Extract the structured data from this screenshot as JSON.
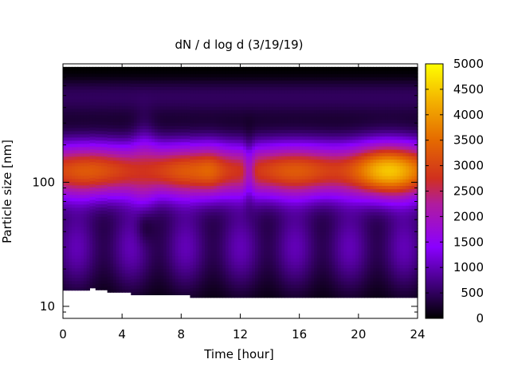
{
  "chart_data": {
    "type": "heatmap",
    "title": "dN / d log d (3/19/19)",
    "xlabel": "Time [hour]",
    "ylabel": "Particle size [nm]",
    "x_range": [
      0,
      24
    ],
    "x_ticks": [
      0,
      4,
      8,
      12,
      16,
      20,
      24
    ],
    "y_scale": "log",
    "y_range_nm": [
      8,
      900
    ],
    "y_ticks": [
      10,
      100
    ],
    "colorbar": {
      "range": [
        0,
        5000
      ],
      "ticks": [
        0,
        500,
        1000,
        1500,
        2000,
        2500,
        3000,
        3500,
        4000,
        4500,
        5000
      ],
      "colormap": [
        "#000000",
        "#4b0082",
        "#8a00ff",
        "#c2207f",
        "#e0440f",
        "#f0a000",
        "#ffff00"
      ]
    },
    "grid": false,
    "description_values": {
      "mode_diameter_nm": 120,
      "peak_concentration_time_hour": 22,
      "peak_concentration": 4300
    }
  }
}
